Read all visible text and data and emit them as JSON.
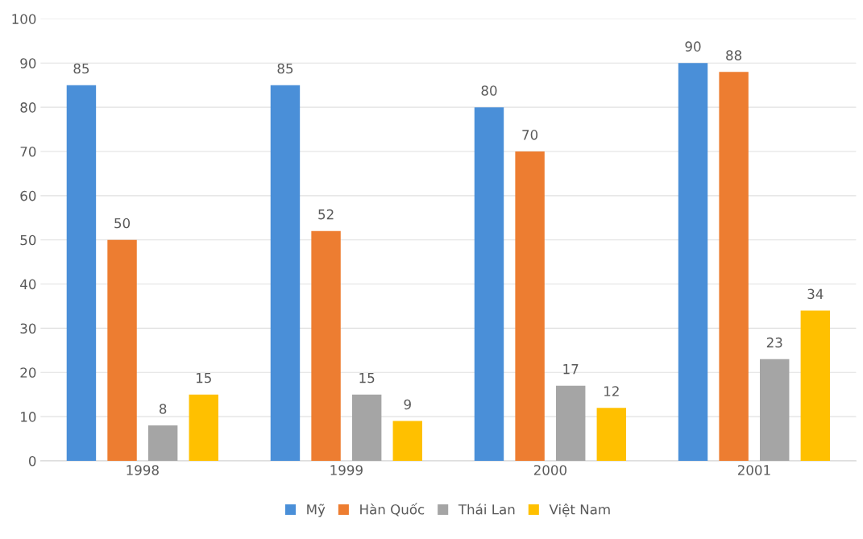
{
  "chart_data": {
    "type": "bar",
    "categories": [
      "1998",
      "1999",
      "2000",
      "2001"
    ],
    "series": [
      {
        "name": "Mỹ",
        "color": "#4a8fd8",
        "values": [
          85,
          85,
          80,
          90
        ]
      },
      {
        "name": "Hàn Quốc",
        "color": "#ed7d31",
        "values": [
          50,
          52,
          70,
          88
        ]
      },
      {
        "name": "Thái Lan",
        "color": "#a5a5a5",
        "values": [
          8,
          15,
          17,
          23
        ]
      },
      {
        "name": "Việt Nam",
        "color": "#ffc000",
        "values": [
          15,
          9,
          12,
          34
        ]
      }
    ],
    "ylim": [
      0,
      100
    ],
    "yticks": [
      0,
      10,
      20,
      30,
      40,
      50,
      60,
      70,
      80,
      90,
      100
    ],
    "grid": "y",
    "legend": "bottom",
    "data_labels": true
  }
}
